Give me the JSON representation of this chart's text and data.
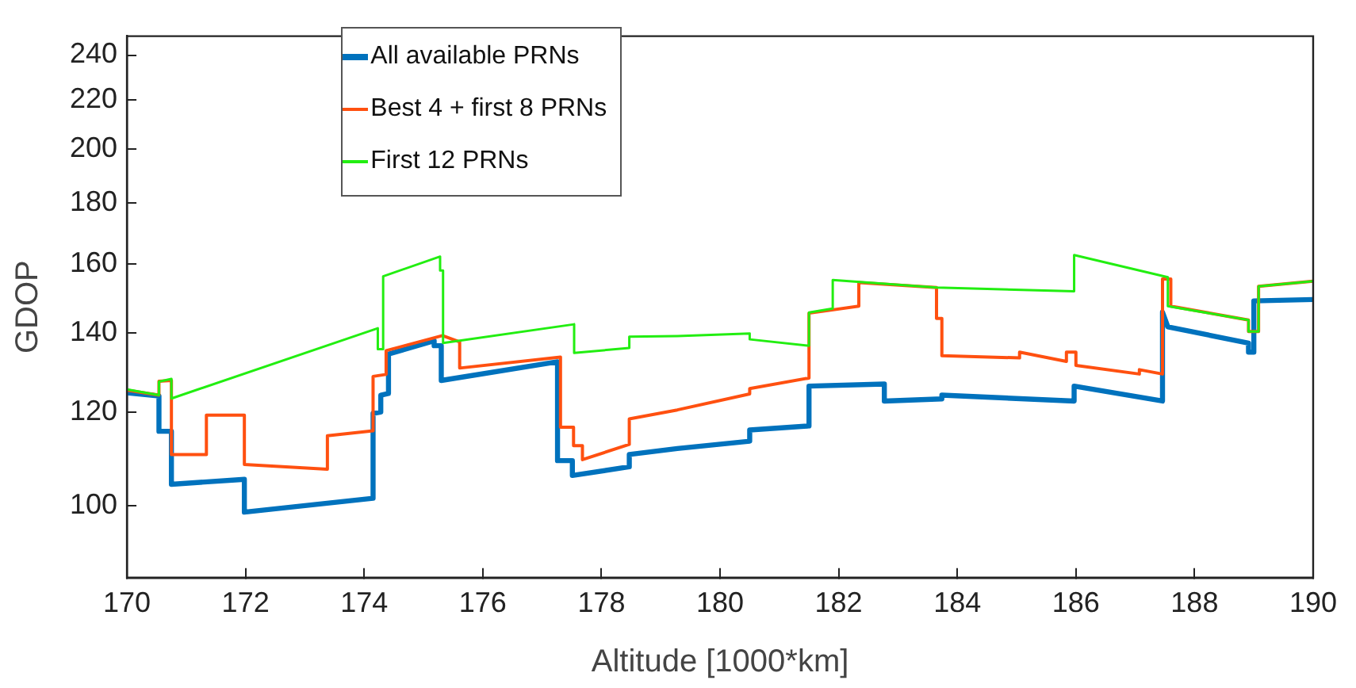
{
  "chart_data": {
    "type": "line",
    "xlabel": "Altitude [1000*km]",
    "ylabel": "GDOP",
    "log": "y",
    "xlim": [
      170,
      190
    ],
    "xticks": [
      170,
      172,
      174,
      176,
      178,
      180,
      182,
      184,
      186,
      188,
      190
    ],
    "ylim": [
      87,
      249
    ],
    "yticks": [
      100,
      120,
      140,
      160,
      180,
      200,
      220,
      240
    ],
    "grid": false,
    "legend": "top left",
    "marker": "none",
    "line_style": "solid",
    "series": [
      {
        "name": "All available PRNs",
        "color": "#0072bd",
        "x": [
          170,
          170.54,
          170.54,
          170.75,
          170.75,
          171.98,
          171.98,
          174.15,
          174.15,
          174.28,
          174.28,
          174.41,
          174.41,
          175.18,
          175.18,
          175.3,
          175.3,
          177.26,
          177.26,
          177.51,
          177.51,
          178.47,
          178.47,
          179.28,
          180.5,
          180.5,
          181.5,
          181.5,
          182.77,
          182.77,
          183.74,
          183.74,
          185.97,
          185.97,
          187.46,
          187.46,
          187.55,
          188.91,
          188.91,
          189.0,
          189.0,
          190
        ],
        "values": [
          124.6,
          123.8,
          115.6,
          115.6,
          104.3,
          105.3,
          98.8,
          101.5,
          119.7,
          120,
          124,
          124.4,
          134.3,
          137.8,
          136.5,
          136.5,
          127.6,
          132.3,
          109.2,
          109.2,
          106.1,
          107.9,
          110.5,
          111.8,
          113.4,
          115.9,
          116.8,
          126.2,
          126.7,
          122.6,
          123.1,
          124.0,
          122.6,
          126.2,
          122.6,
          145.7,
          141.6,
          137.2,
          134.8,
          134.8,
          148.9,
          149.3
        ]
      },
      {
        "name": "Best 4 + first 8 PRNs",
        "color": "#ff5010",
        "x": [
          170,
          170.54,
          170.54,
          170.75,
          170.75,
          171.34,
          171.34,
          171.98,
          171.98,
          173.38,
          173.38,
          174.15,
          174.15,
          174.37,
          174.37,
          175.32,
          175.61,
          175.61,
          177.31,
          177.31,
          177.53,
          177.53,
          177.68,
          177.68,
          178.47,
          178.47,
          179.28,
          180.5,
          180.5,
          181.5,
          181.5,
          182.34,
          182.34,
          183.65,
          183.65,
          183.74,
          183.74,
          185.05,
          185.05,
          185.84,
          185.84,
          186.0,
          186.0,
          187.07,
          187.07,
          187.46,
          187.46,
          187.6,
          187.6,
          188.91,
          188.91,
          189.08,
          189.08,
          190
        ],
        "values": [
          125.2,
          124,
          127.4,
          127.6,
          110.5,
          110.5,
          119.3,
          119.3,
          108.4,
          107.4,
          114.6,
          115.7,
          128.6,
          129.1,
          135.2,
          139.2,
          137.5,
          130.7,
          133.5,
          116.5,
          116.5,
          112.4,
          112.4,
          109.4,
          112.7,
          118.4,
          120.5,
          124.3,
          125.6,
          128.2,
          145.4,
          147.4,
          154.3,
          152.8,
          143.9,
          143.9,
          133.9,
          133.3,
          134.8,
          132.4,
          134.8,
          134.8,
          131.4,
          129.2,
          130.3,
          129.2,
          155.4,
          155.4,
          147.4,
          143.5,
          140.3,
          140.3,
          153.2,
          154.7
        ]
      },
      {
        "name": "First 12 PRNs",
        "color": "#22ee11",
        "x": [
          170,
          170.54,
          170.54,
          170.75,
          170.75,
          174.23,
          174.23,
          174.32,
          174.32,
          175.28,
          175.28,
          175.33,
          175.33,
          177.54,
          177.54,
          178.47,
          178.47,
          179.28,
          180.5,
          180.5,
          181.5,
          181.5,
          181.9,
          181.9,
          183.65,
          185.97,
          185.97,
          187.55,
          187.55,
          188.91,
          188.91,
          189.08,
          189.08,
          190
        ],
        "values": [
          125.4,
          124,
          127.3,
          128,
          123.2,
          141.2,
          135.6,
          135.6,
          156.2,
          162.3,
          158,
          158,
          137.2,
          142.3,
          134.6,
          135.9,
          138.9,
          139.1,
          139.8,
          138.2,
          136.5,
          145.6,
          146.7,
          155.1,
          152.8,
          151.7,
          162.8,
          155.9,
          147.4,
          143.5,
          140.3,
          140.3,
          153.2,
          154.7
        ]
      }
    ]
  }
}
